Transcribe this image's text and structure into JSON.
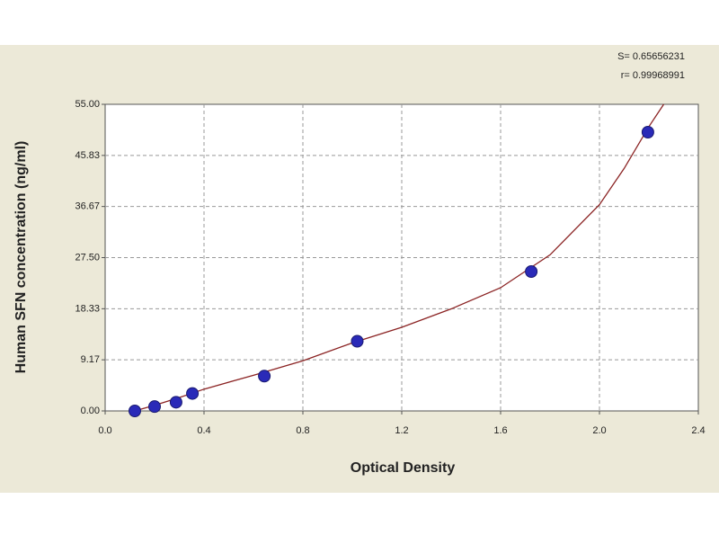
{
  "chart_data": {
    "type": "scatter",
    "x_label": "Optical Density",
    "y_label": "Human SFN concentration (ng/ml)",
    "annotations": [
      "S= 0.65656231",
      "r= 0.99968991"
    ],
    "xlim": [
      0,
      2.4
    ],
    "xticks": [
      {
        "value": 0,
        "label": "0.0"
      },
      0.4,
      0.8,
      1.2,
      1.6,
      {
        "value": 2,
        "label": "2.0"
      },
      2.4
    ],
    "ylim": [
      0,
      55
    ],
    "yticks": [
      {
        "value": 0,
        "label": "0.00"
      },
      9.17,
      18.33,
      {
        "value": 27.5,
        "label": "27.50"
      },
      36.67,
      45.83,
      {
        "value": 55,
        "label": "55.00"
      }
    ],
    "grid": true,
    "series": [
      {
        "color": "#2a2ab8",
        "x": [
          0.12,
          0.2,
          0.287,
          0.353,
          0.644,
          1.02,
          1.724,
          2.196
        ],
        "values": [
          0,
          0.78,
          1.56,
          3.13,
          6.25,
          12.5,
          25,
          50
        ]
      },
      {
        "type": "line",
        "color": "#8b2323",
        "x": [
          0.12,
          0.2,
          0.3,
          0.4,
          0.6,
          0.8,
          1.0,
          1.2,
          1.4,
          1.6,
          1.8,
          2.0,
          2.1,
          2.2,
          2.26
        ],
        "values": [
          0,
          1.0,
          2.4,
          3.9,
          6.4,
          9.0,
          12.2,
          15.0,
          18.3,
          22.1,
          28,
          37,
          43.5,
          51,
          55
        ]
      }
    ]
  }
}
